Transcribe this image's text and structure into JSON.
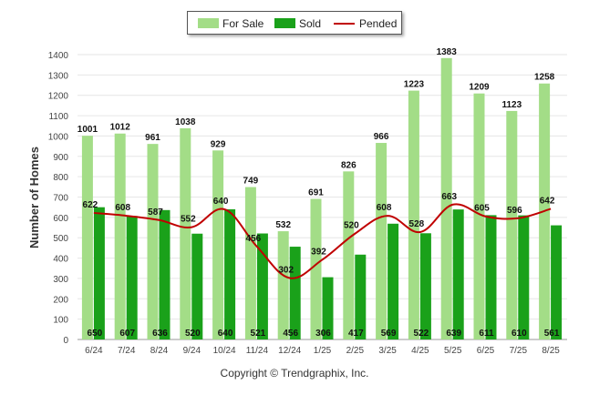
{
  "chart_data": {
    "type": "bar",
    "ylabel": "Number of Homes",
    "xlabel": "",
    "ylim": [
      0,
      1400
    ],
    "yticks": [
      0,
      100,
      200,
      300,
      400,
      500,
      600,
      700,
      800,
      900,
      1000,
      1100,
      1200,
      1300,
      1400
    ],
    "grid": true,
    "legend_position": "top-center",
    "categories": [
      "6/24",
      "7/24",
      "8/24",
      "9/24",
      "10/24",
      "11/24",
      "12/24",
      "1/25",
      "2/25",
      "3/25",
      "4/25",
      "5/25",
      "6/25",
      "7/25",
      "8/25"
    ],
    "series": [
      {
        "name": "For Sale",
        "type": "bar",
        "color": "#a3dd87",
        "values": [
          1001,
          1012,
          961,
          1038,
          929,
          749,
          532,
          691,
          826,
          966,
          1223,
          1383,
          1209,
          1123,
          1258
        ]
      },
      {
        "name": "Sold",
        "type": "bar",
        "color": "#1aa11a",
        "values": [
          650,
          607,
          636,
          520,
          640,
          521,
          456,
          306,
          417,
          569,
          522,
          639,
          611,
          610,
          561
        ]
      },
      {
        "name": "Pended",
        "type": "line",
        "color": "#c00000",
        "values": [
          622,
          608,
          587,
          552,
          640,
          456,
          302,
          392,
          520,
          608,
          528,
          663,
          605,
          596,
          642
        ]
      }
    ]
  },
  "legend": {
    "for_sale": "For Sale",
    "sold": "Sold",
    "pended": "Pended",
    "colors": {
      "for_sale": "#a3dd87",
      "sold": "#1aa11a",
      "pended": "#c00000"
    }
  },
  "footer": {
    "copyright": "Copyright © Trendgraphix, Inc."
  }
}
